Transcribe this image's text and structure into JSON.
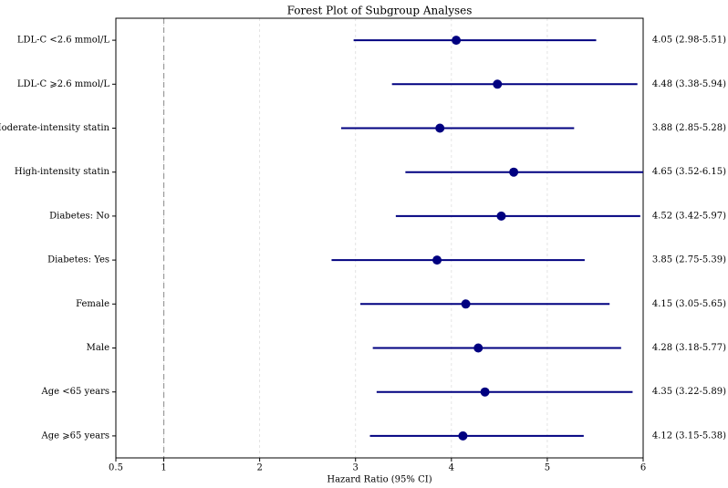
{
  "chart_data": {
    "type": "forest",
    "title": "Forest Plot of Subgroup Analyses",
    "x_label": "Hazard Ratio (95% CI)",
    "categories": [
      "LDL-C <2.6 mmol/L",
      "LDL-C ⩾2.6 mmol/L",
      "Moderate-intensity statin",
      "High-intensity statin",
      "Diabetes: No",
      "Diabetes: Yes",
      "Female",
      "Male",
      "Age <65 years",
      "Age ⩾65 years"
    ],
    "values": [
      4.05,
      4.48,
      3.88,
      4.65,
      4.52,
      3.85,
      4.15,
      4.28,
      4.35,
      4.12
    ],
    "ci_lower": [
      2.98,
      3.38,
      2.85,
      3.52,
      3.42,
      2.75,
      3.05,
      3.18,
      3.22,
      3.15
    ],
    "ci_upper": [
      5.51,
      5.94,
      5.28,
      6.15,
      5.97,
      5.39,
      5.65,
      5.77,
      5.89,
      5.38
    ],
    "value_labels": [
      "4.05 (2.98-5.51)",
      "4.48 (3.38-5.94)",
      "3.88 (2.85-5.28)",
      "4.65 (3.52-6.15)",
      "4.52 (3.42-5.97)",
      "3.85 (2.75-5.39)",
      "4.15 (3.05-5.65)",
      "4.28 (3.18-5.77)",
      "4.35 (3.22-5.89)",
      "4.12 (3.15-5.38)"
    ],
    "color": "#000080",
    "xlim": [
      0.5,
      6
    ],
    "xticks": [
      0.5,
      1,
      2,
      3,
      4,
      5,
      6
    ],
    "reference_line": 1,
    "grid": true
  }
}
